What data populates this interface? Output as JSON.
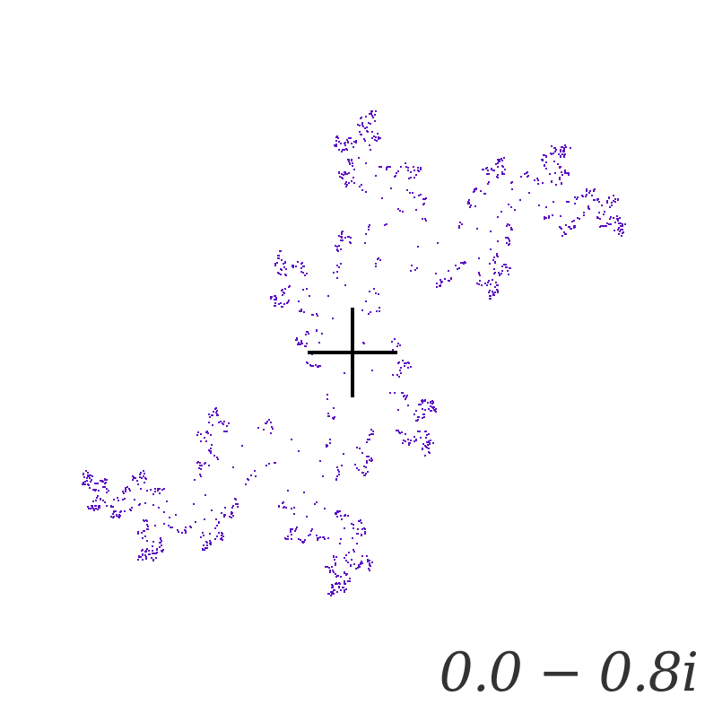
{
  "label": {
    "text": "0.0 − 0.8i"
  },
  "fractal": {
    "c_real": 0.0,
    "c_imag": -0.8,
    "point_color": "#5b0fc4"
  },
  "crosshair": {
    "color": "#000000"
  },
  "label_color": "#333333",
  "background": "#ffffff"
}
